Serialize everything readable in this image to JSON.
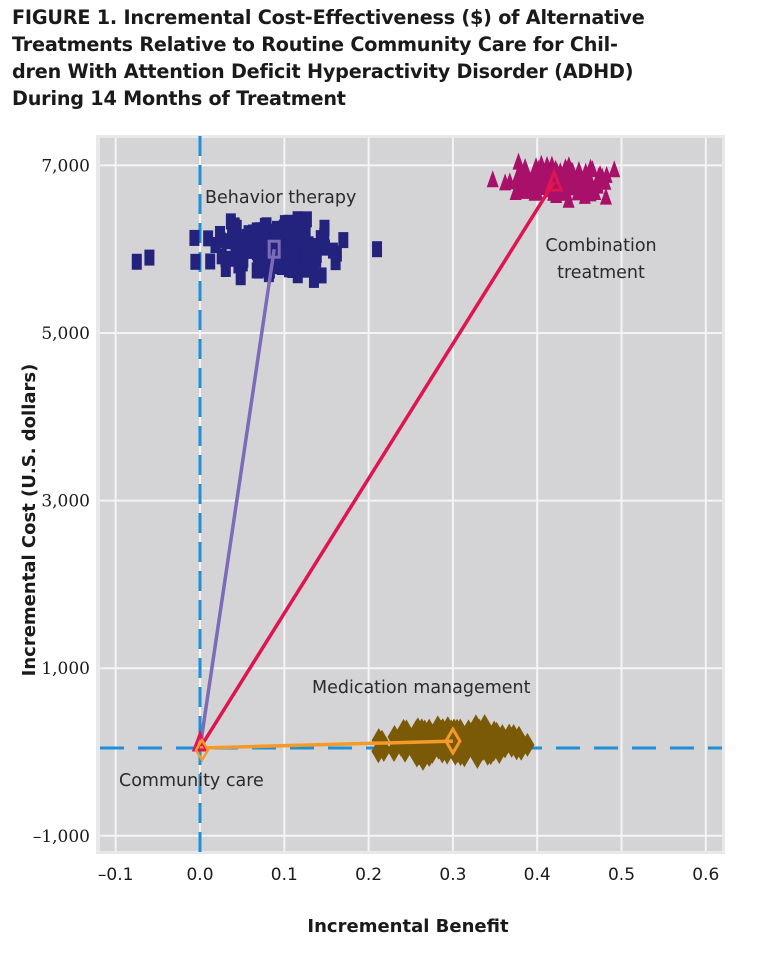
{
  "figure": {
    "title_lines": [
      "FIGURE 1. Incremental Cost-Effectiveness ($) of Alternative",
      "Treatments Relative to Routine Community Care for Chil-",
      "dren With Attention Deficit Hyperactivity Disorder (ADHD)",
      "During 14 Months of Treatment"
    ]
  },
  "chart_data": {
    "type": "scatter",
    "title": "FIGURE 1. Incremental Cost-Effectiveness ($) of Alternative Treatments Relative to Routine Community Care for Children With Attention Deficit Hyperactivity Disorder (ADHD) During 14 Months of Treatment",
    "xlabel": "Incremental Benefit",
    "ylabel": "Incremental Cost (U.S. dollars)",
    "xlim": [
      -0.12,
      0.62
    ],
    "ylim": [
      -1150,
      7350
    ],
    "xticks": [
      -0.1,
      0.0,
      0.1,
      0.2,
      0.3,
      0.4,
      0.5,
      0.6
    ],
    "xtick_labels": [
      "–0.1",
      "0.0",
      "0.1",
      "0.2",
      "0.3",
      "0.4",
      "0.5",
      "0.6"
    ],
    "yticks": [
      -1000,
      1000,
      3000,
      5000,
      7000
    ],
    "ytick_labels": [
      "–1,000",
      "1,000",
      "3,000",
      "5,000",
      "7,000"
    ],
    "grid": true,
    "background": "#d4d4d6",
    "reference_lines": {
      "x_zero": {
        "value": 0,
        "style": "dashed",
        "color": "#1e90d8"
      },
      "y_zero": {
        "value": 0,
        "style": "dashed",
        "color": "#1e90d8"
      }
    },
    "origin": {
      "name": "Community care",
      "x": 0.0,
      "y": 0
    },
    "series": [
      {
        "name": "Behavior therapy",
        "marker": "square",
        "color": "#23237e",
        "line_color": "#7b6bb8",
        "mean": {
          "x": 0.088,
          "y": 6000
        },
        "label_pos": {
          "x": 0.11,
          "y": 6550
        },
        "x_range": [
          -0.075,
          0.21
        ],
        "y_range": [
          5200,
          6400
        ],
        "n_points": 180
      },
      {
        "name": "Combination treatment",
        "label_lines": [
          "Combination",
          "treatment"
        ],
        "marker": "triangle",
        "color": "#a8106a",
        "line_color": "#e0144e",
        "mean": {
          "x": 0.42,
          "y": 6800
        },
        "label_pos": {
          "x": 0.475,
          "y": 6000
        },
        "x_range": [
          0.3,
          0.53
        ],
        "y_range": [
          6450,
          7200
        ],
        "n_points": 170
      },
      {
        "name": "Medication management",
        "marker": "diamond",
        "color": "#7a5a06",
        "line_color": "#f39a28",
        "mean": {
          "x": 0.3,
          "y": 130
        },
        "label_pos": {
          "x": 0.275,
          "y": 700
        },
        "x_range": [
          0.14,
          0.42
        ],
        "y_range": [
          -300,
          450
        ],
        "n_points": 170
      }
    ]
  }
}
